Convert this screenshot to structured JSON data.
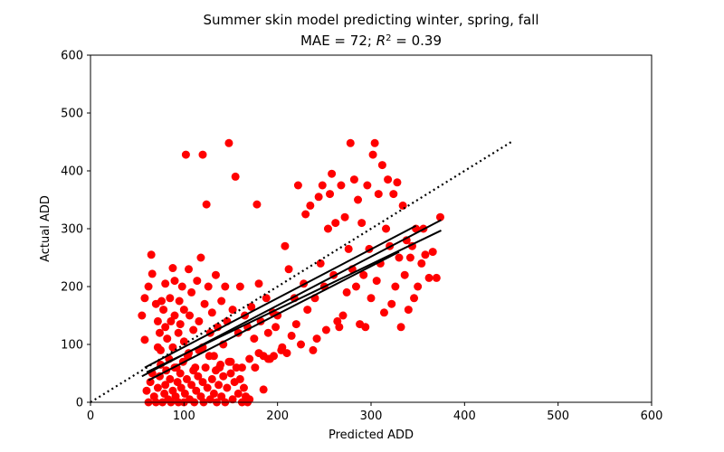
{
  "chart_data": {
    "type": "scatter",
    "title": "Summer skin model predicting winter, spring, fall",
    "subtitle_prefix": "MAE = 72; ",
    "subtitle_r": "R",
    "subtitle_exp": "2",
    "subtitle_suffix": " = 0.39",
    "xlabel": "Predicted ADD",
    "ylabel": "Actual ADD",
    "xlim": [
      0,
      600
    ],
    "ylim": [
      0,
      600
    ],
    "xticks": [
      "0",
      "100",
      "200",
      "300",
      "400",
      "500",
      "600"
    ],
    "yticks": [
      "0",
      "100",
      "200",
      "300",
      "400",
      "500",
      "600"
    ],
    "grid": false,
    "point_color": "#ff0000",
    "line_color": "#000000",
    "one_to_one_line": {
      "style": "dotted",
      "x": [
        0,
        450
      ],
      "y": [
        0,
        450
      ]
    },
    "fit_lines": [
      {
        "x": [
          55,
          375
        ],
        "y": [
          45,
          315
        ]
      },
      {
        "x": [
          58,
          348
        ],
        "y": [
          60,
          305
        ]
      },
      {
        "x": [
          60,
          375
        ],
        "y": [
          52,
          297
        ]
      },
      {
        "x": [
          62,
          330
        ],
        "y": [
          38,
          260
        ]
      }
    ],
    "points": [
      [
        55,
        150
      ],
      [
        58,
        108
      ],
      [
        58,
        180
      ],
      [
        62,
        200
      ],
      [
        65,
        255
      ],
      [
        66,
        222
      ],
      [
        70,
        170
      ],
      [
        72,
        140
      ],
      [
        72,
        95
      ],
      [
        74,
        120
      ],
      [
        75,
        90
      ],
      [
        76,
        175
      ],
      [
        78,
        160
      ],
      [
        80,
        130
      ],
      [
        80,
        205
      ],
      [
        82,
        110
      ],
      [
        84,
        75
      ],
      [
        85,
        180
      ],
      [
        86,
        140
      ],
      [
        88,
        95
      ],
      [
        88,
        232
      ],
      [
        90,
        150
      ],
      [
        90,
        210
      ],
      [
        92,
        60
      ],
      [
        94,
        120
      ],
      [
        95,
        175
      ],
      [
        96,
        135
      ],
      [
        98,
        200
      ],
      [
        100,
        105
      ],
      [
        100,
        160
      ],
      [
        102,
        428
      ],
      [
        104,
        80
      ],
      [
        105,
        230
      ],
      [
        106,
        150
      ],
      [
        108,
        190
      ],
      [
        110,
        125
      ],
      [
        112,
        60
      ],
      [
        114,
        210
      ],
      [
        116,
        140
      ],
      [
        118,
        250
      ],
      [
        120,
        428
      ],
      [
        120,
        95
      ],
      [
        122,
        170
      ],
      [
        124,
        342
      ],
      [
        126,
        200
      ],
      [
        128,
        120
      ],
      [
        130,
        155
      ],
      [
        132,
        80
      ],
      [
        134,
        220
      ],
      [
        136,
        130
      ],
      [
        138,
        60
      ],
      [
        140,
        175
      ],
      [
        142,
        100
      ],
      [
        144,
        200
      ],
      [
        146,
        140
      ],
      [
        148,
        448
      ],
      [
        150,
        70
      ],
      [
        152,
        160
      ],
      [
        155,
        390
      ],
      [
        158,
        120
      ],
      [
        160,
        200
      ],
      [
        162,
        60
      ],
      [
        165,
        150
      ],
      [
        168,
        130
      ],
      [
        170,
        75
      ],
      [
        172,
        165
      ],
      [
        175,
        110
      ],
      [
        178,
        342
      ],
      [
        180,
        205
      ],
      [
        182,
        140
      ],
      [
        185,
        80
      ],
      [
        188,
        180
      ],
      [
        190,
        120
      ],
      [
        192,
        75
      ],
      [
        195,
        155
      ],
      [
        198,
        130
      ],
      [
        200,
        150
      ],
      [
        205,
        95
      ],
      [
        208,
        270
      ],
      [
        212,
        230
      ],
      [
        215,
        115
      ],
      [
        218,
        180
      ],
      [
        220,
        135
      ],
      [
        222,
        375
      ],
      [
        225,
        100
      ],
      [
        228,
        205
      ],
      [
        230,
        325
      ],
      [
        232,
        160
      ],
      [
        235,
        340
      ],
      [
        238,
        90
      ],
      [
        240,
        180
      ],
      [
        242,
        110
      ],
      [
        244,
        355
      ],
      [
        246,
        240
      ],
      [
        248,
        375
      ],
      [
        250,
        200
      ],
      [
        252,
        125
      ],
      [
        254,
        300
      ],
      [
        256,
        360
      ],
      [
        258,
        395
      ],
      [
        260,
        220
      ],
      [
        262,
        310
      ],
      [
        264,
        140
      ],
      [
        266,
        130
      ],
      [
        268,
        375
      ],
      [
        270,
        150
      ],
      [
        272,
        320
      ],
      [
        274,
        190
      ],
      [
        276,
        265
      ],
      [
        278,
        448
      ],
      [
        280,
        230
      ],
      [
        282,
        385
      ],
      [
        284,
        200
      ],
      [
        286,
        350
      ],
      [
        288,
        135
      ],
      [
        290,
        310
      ],
      [
        292,
        220
      ],
      [
        294,
        130
      ],
      [
        296,
        375
      ],
      [
        298,
        265
      ],
      [
        300,
        180
      ],
      [
        302,
        428
      ],
      [
        304,
        448
      ],
      [
        306,
        210
      ],
      [
        308,
        360
      ],
      [
        310,
        240
      ],
      [
        312,
        410
      ],
      [
        314,
        155
      ],
      [
        316,
        300
      ],
      [
        318,
        385
      ],
      [
        320,
        270
      ],
      [
        322,
        170
      ],
      [
        324,
        360
      ],
      [
        326,
        200
      ],
      [
        328,
        380
      ],
      [
        330,
        250
      ],
      [
        332,
        130
      ],
      [
        334,
        340
      ],
      [
        336,
        220
      ],
      [
        338,
        280
      ],
      [
        340,
        160
      ],
      [
        342,
        250
      ],
      [
        344,
        270
      ],
      [
        346,
        180
      ],
      [
        348,
        300
      ],
      [
        350,
        200
      ],
      [
        354,
        240
      ],
      [
        356,
        300
      ],
      [
        358,
        255
      ],
      [
        362,
        215
      ],
      [
        366,
        260
      ],
      [
        370,
        215
      ],
      [
        374,
        320
      ],
      [
        60,
        20
      ],
      [
        62,
        0
      ],
      [
        64,
        35
      ],
      [
        66,
        50
      ],
      [
        68,
        10
      ],
      [
        70,
        0
      ],
      [
        72,
        25
      ],
      [
        74,
        45
      ],
      [
        75,
        65
      ],
      [
        77,
        0
      ],
      [
        79,
        15
      ],
      [
        80,
        30
      ],
      [
        81,
        55
      ],
      [
        83,
        5
      ],
      [
        85,
        40
      ],
      [
        86,
        0
      ],
      [
        88,
        20
      ],
      [
        90,
        60
      ],
      [
        91,
        10
      ],
      [
        93,
        35
      ],
      [
        94,
        0
      ],
      [
        96,
        50
      ],
      [
        97,
        25
      ],
      [
        99,
        70
      ],
      [
        100,
        0
      ],
      [
        101,
        15
      ],
      [
        103,
        40
      ],
      [
        105,
        85
      ],
      [
        106,
        5
      ],
      [
        108,
        30
      ],
      [
        110,
        55
      ],
      [
        111,
        0
      ],
      [
        113,
        20
      ],
      [
        115,
        45
      ],
      [
        116,
        90
      ],
      [
        118,
        10
      ],
      [
        120,
        35
      ],
      [
        121,
        0
      ],
      [
        123,
        60
      ],
      [
        125,
        25
      ],
      [
        127,
        80
      ],
      [
        128,
        5
      ],
      [
        130,
        40
      ],
      [
        132,
        15
      ],
      [
        134,
        55
      ],
      [
        135,
        0
      ],
      [
        137,
        30
      ],
      [
        139,
        65
      ],
      [
        140,
        10
      ],
      [
        142,
        45
      ],
      [
        144,
        0
      ],
      [
        146,
        25
      ],
      [
        148,
        70
      ],
      [
        150,
        50
      ],
      [
        152,
        5
      ],
      [
        154,
        35
      ],
      [
        156,
        60
      ],
      [
        158,
        15
      ],
      [
        160,
        40
      ],
      [
        162,
        0
      ],
      [
        164,
        25
      ],
      [
        166,
        10
      ],
      [
        168,
        0
      ],
      [
        170,
        5
      ],
      [
        176,
        60
      ],
      [
        180,
        85
      ],
      [
        185,
        22
      ],
      [
        190,
        75
      ],
      [
        196,
        80
      ],
      [
        204,
        90
      ],
      [
        210,
        85
      ]
    ]
  }
}
